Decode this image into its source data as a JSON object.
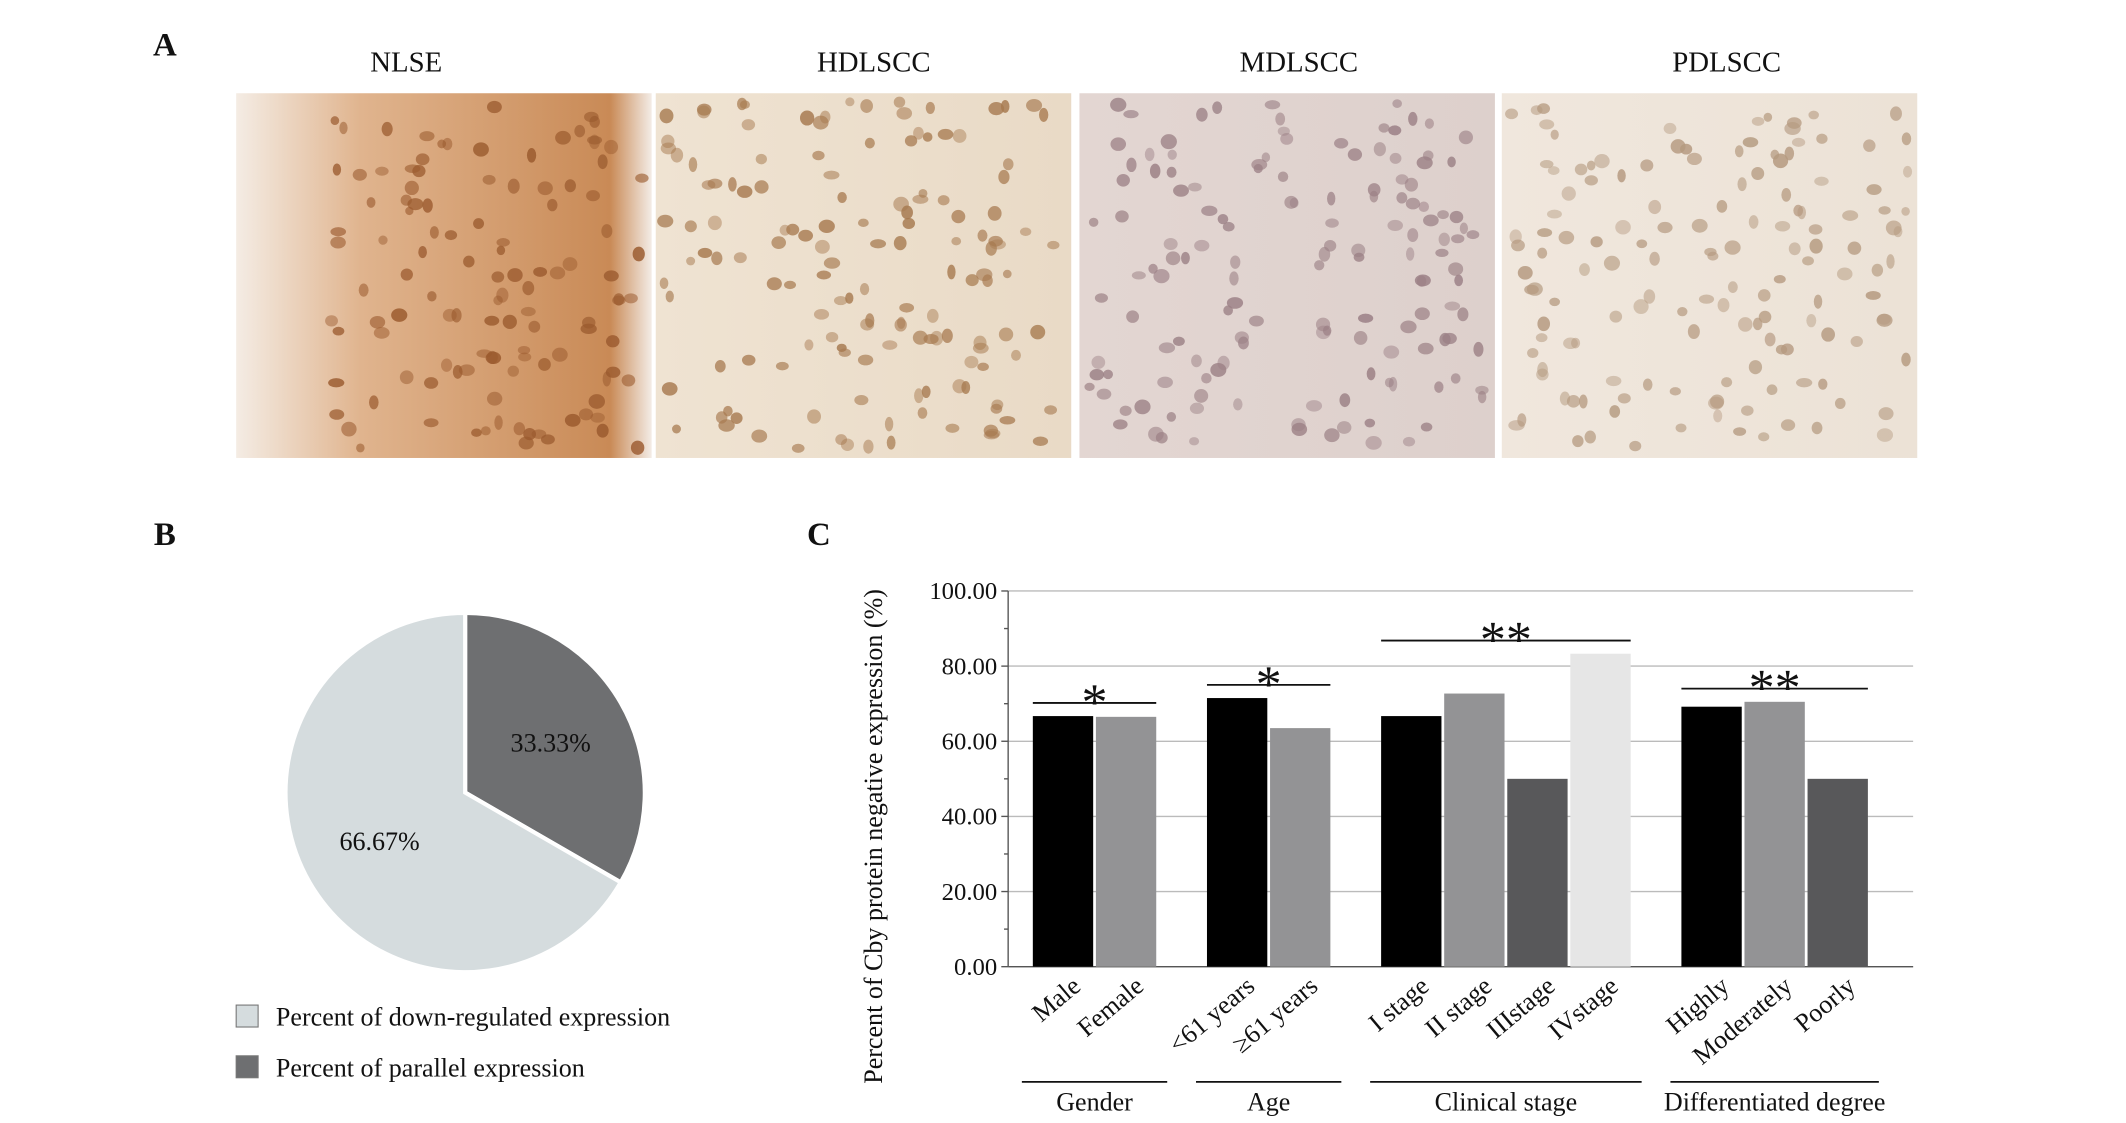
{
  "panel_labels": [
    "A",
    "B",
    "C"
  ],
  "images": {
    "titles": [
      "NLSE",
      "HDLSCC",
      "MDLSCC",
      "PDLSCC"
    ]
  },
  "chart_data": [
    {
      "type": "pie",
      "categories": [
        "Percent of down-regulated expression",
        "Percent of parallel expression"
      ],
      "values": [
        66.67,
        33.33
      ],
      "value_labels": [
        "66.67%",
        "33.33%"
      ],
      "colors": [
        "#d5dcde",
        "#6e6f71"
      ]
    },
    {
      "type": "bar",
      "ylabel": "Percent of Cby protein negative expression (%)",
      "ylim": [
        0,
        100
      ],
      "yticks": [
        {
          "value": 0,
          "label": "0.00"
        },
        {
          "value": 20,
          "label": "20.00"
        },
        {
          "value": 40,
          "label": "40.00"
        },
        {
          "value": 60,
          "label": "60.00"
        },
        {
          "value": 80,
          "label": "80.00"
        },
        {
          "value": 100,
          "label": "100.00"
        }
      ],
      "grid": true,
      "groups": [
        {
          "name": "Gender",
          "significance": "*",
          "categories": [
            "Male",
            "Female"
          ],
          "values": [
            66.7,
            66.5
          ],
          "colors": [
            "#000000",
            "#939395"
          ]
        },
        {
          "name": "Age",
          "significance": "*",
          "categories": [
            "<61 years",
            "≥61 years"
          ],
          "values": [
            71.5,
            63.5
          ],
          "colors": [
            "#000000",
            "#939395"
          ]
        },
        {
          "name": "Clinical stage",
          "significance": "**",
          "categories": [
            "I stage",
            "II stage",
            "IIIstage",
            "IVstage"
          ],
          "values": [
            66.7,
            72.7,
            50,
            83.3
          ],
          "colors": [
            "#000000",
            "#939395",
            "#58585a",
            "#e6e6e6"
          ]
        },
        {
          "name": "Differentiated degree",
          "significance": "**",
          "categories": [
            "Highly",
            "Moderately",
            "Poorly"
          ],
          "values": [
            69.2,
            70.5,
            50
          ],
          "colors": [
            "#000000",
            "#939395",
            "#58585a"
          ]
        }
      ]
    }
  ]
}
